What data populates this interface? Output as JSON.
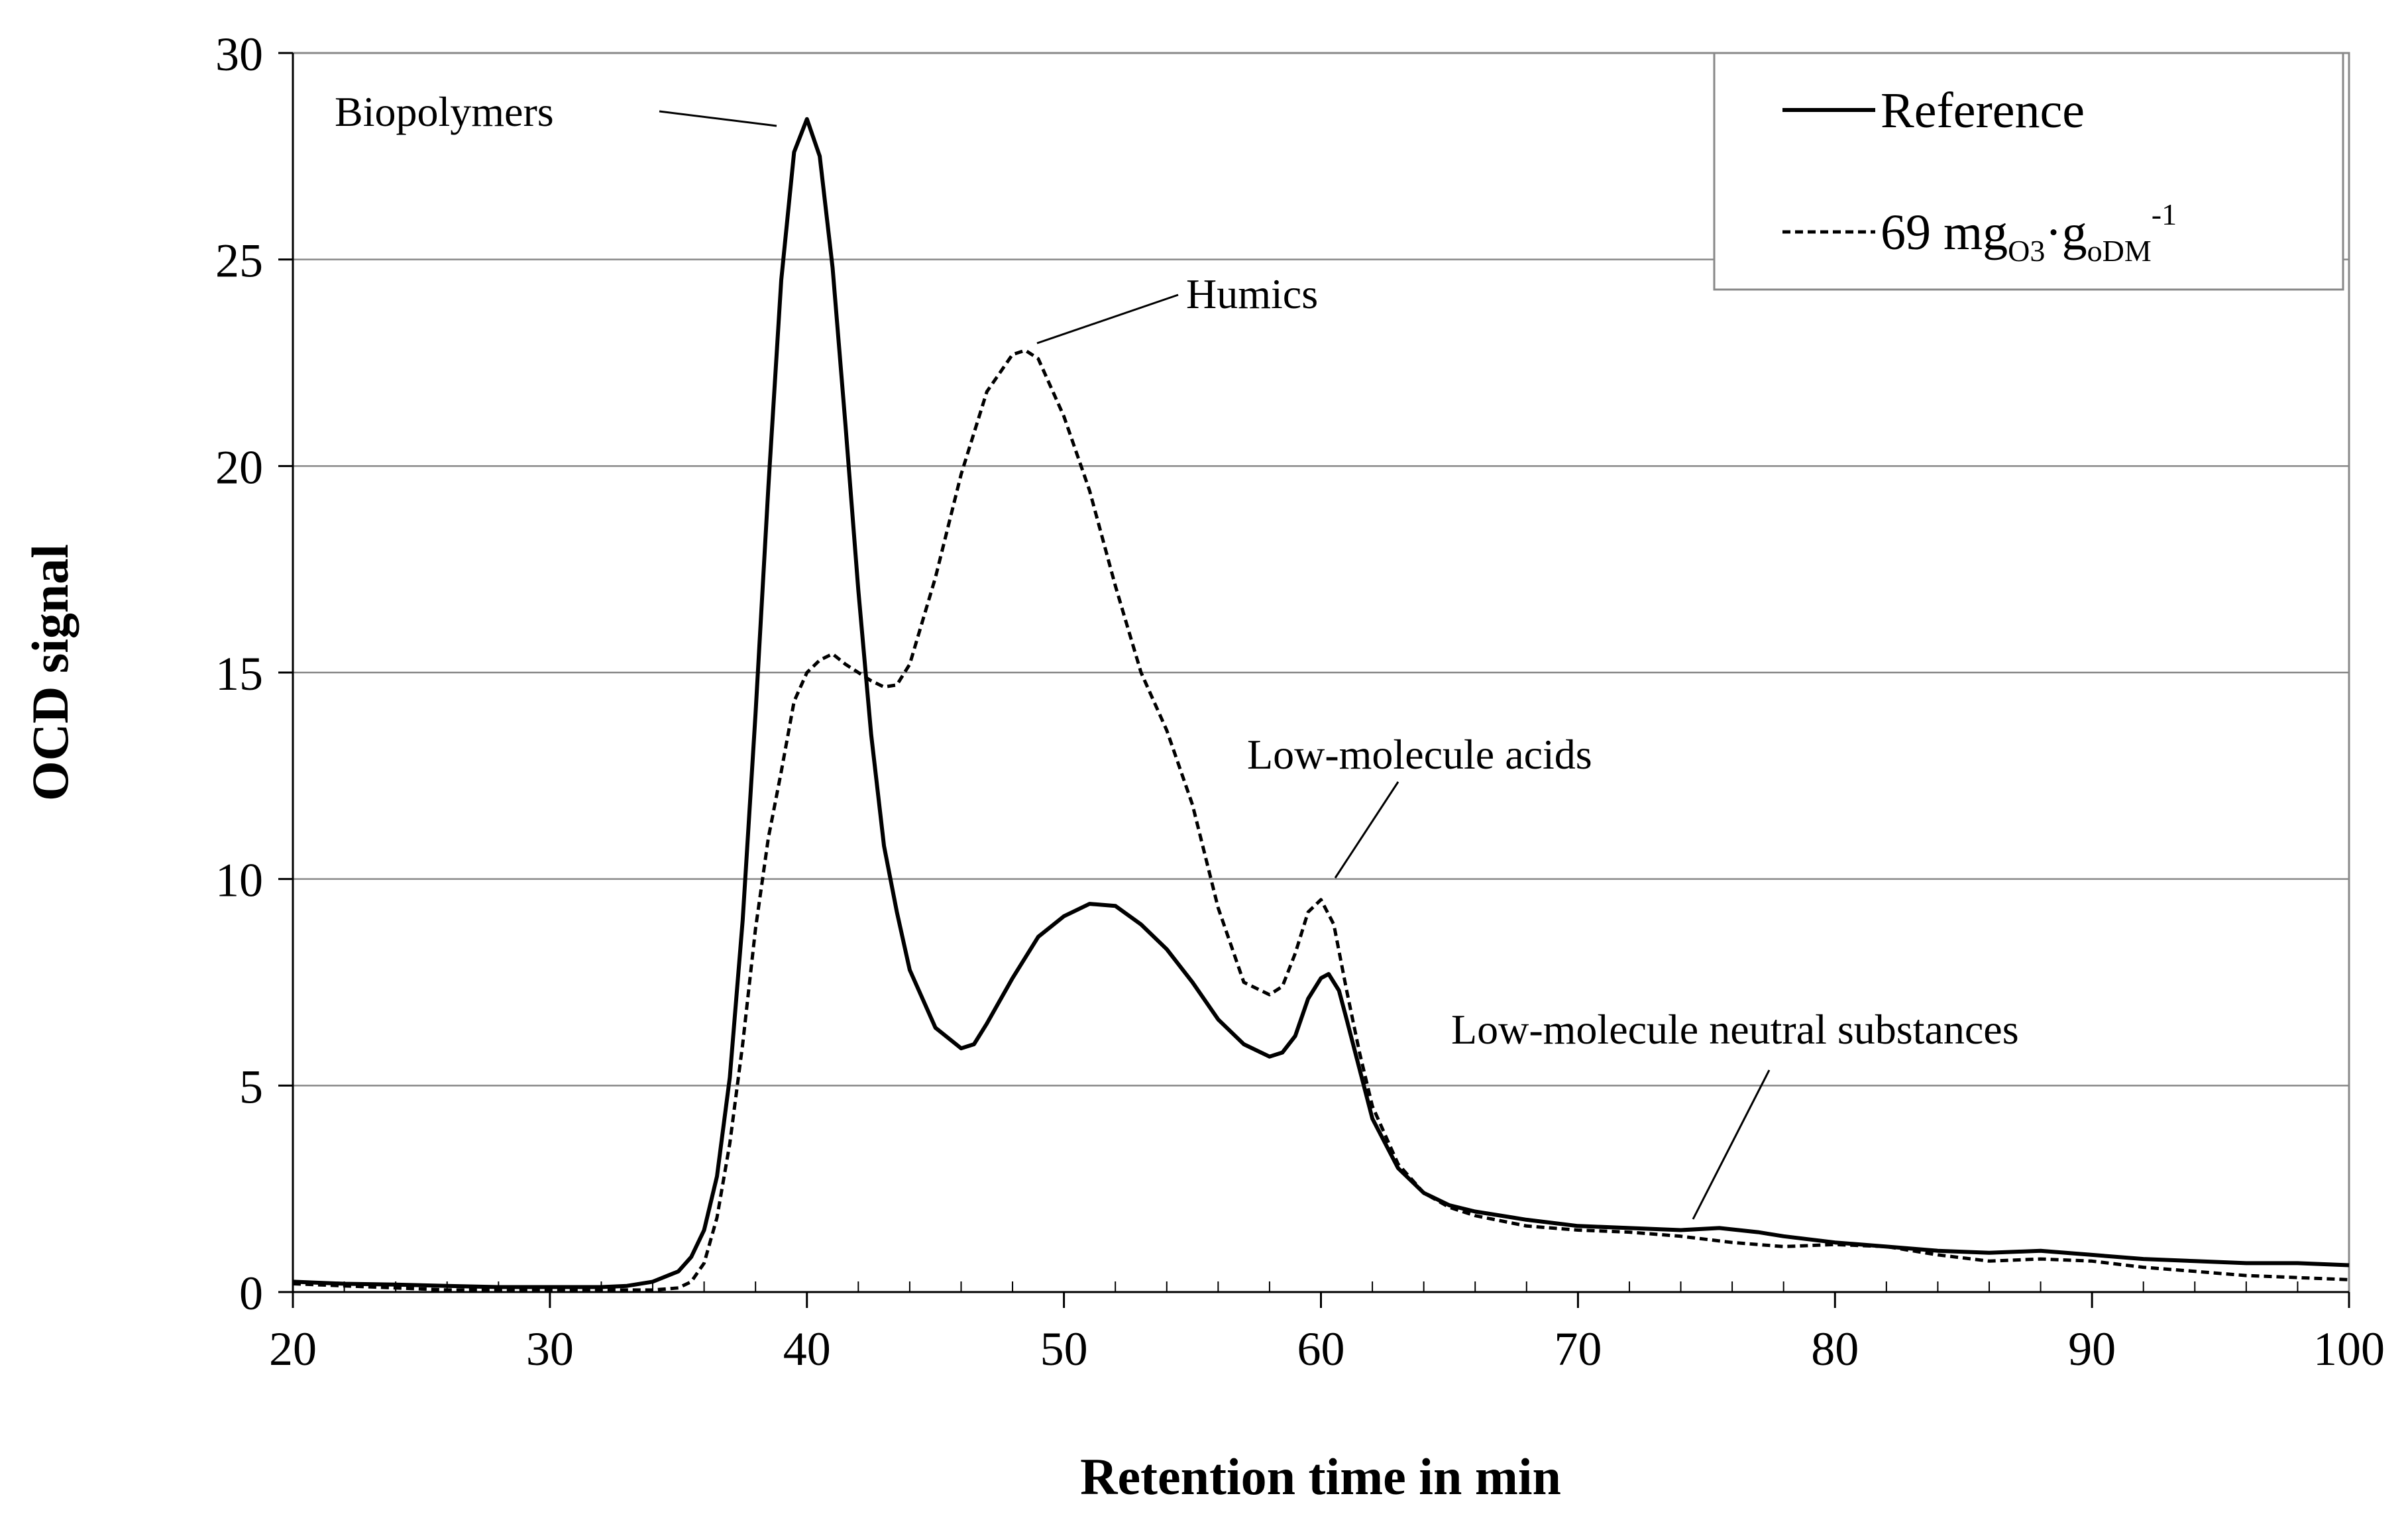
{
  "chart_data": {
    "type": "line",
    "title": "",
    "xlabel": "Retention time in min",
    "ylabel": "OCD signal",
    "xlim": [
      20,
      100
    ],
    "ylim": [
      0,
      30
    ],
    "xticks": [
      20,
      30,
      40,
      50,
      60,
      70,
      80,
      90,
      100
    ],
    "yticks": [
      0,
      5,
      10,
      15,
      20,
      25,
      30
    ],
    "grid": "horizontal",
    "legend_position": "top-right",
    "legend": {
      "reference": "Reference",
      "ozonated_main": "69 mg",
      "ozonated_sub1": "O3",
      "ozonated_dot": "·g",
      "ozonated_sub2": "oDM",
      "ozonated_sup": "-1"
    },
    "annotations": [
      {
        "text": "Biopolymers",
        "target": [
          39.8,
          28.4
        ]
      },
      {
        "text": "Humics",
        "target": [
          48.5,
          22.8
        ]
      },
      {
        "text": "Low-molecule acids",
        "target": [
          60.2,
          9.5
        ]
      },
      {
        "text": "Low-molecule neutral substances",
        "target": [
          74.5,
          1.7
        ]
      }
    ],
    "series": [
      {
        "name": "Reference",
        "style": "solid",
        "x": [
          20,
          22,
          24,
          26,
          28,
          30,
          32,
          33,
          34,
          35,
          35.5,
          36,
          36.5,
          37,
          37.5,
          38,
          38.5,
          39,
          39.5,
          40,
          40.5,
          41,
          41.5,
          42,
          42.5,
          43,
          43.5,
          44,
          45,
          46,
          46.5,
          47,
          48,
          49,
          50,
          51,
          52,
          53,
          54,
          55,
          56,
          57,
          58,
          58.5,
          59,
          59.5,
          60,
          60.3,
          60.7,
          61,
          61.5,
          62,
          63,
          64,
          65,
          66,
          68,
          70,
          72,
          74,
          75.5,
          77,
          78,
          80,
          82,
          84,
          86,
          88,
          90,
          92,
          94,
          96,
          98,
          100
        ],
        "y": [
          0.25,
          0.2,
          0.18,
          0.15,
          0.12,
          0.12,
          0.12,
          0.15,
          0.25,
          0.5,
          0.85,
          1.5,
          2.8,
          5.2,
          9.0,
          14.0,
          19.5,
          24.5,
          27.6,
          28.4,
          27.5,
          24.8,
          21.0,
          17.0,
          13.5,
          10.8,
          9.2,
          7.8,
          6.4,
          5.9,
          6.0,
          6.5,
          7.6,
          8.6,
          9.1,
          9.4,
          9.35,
          8.9,
          8.3,
          7.5,
          6.6,
          6.0,
          5.7,
          5.8,
          6.2,
          7.1,
          7.6,
          7.7,
          7.3,
          6.6,
          5.4,
          4.2,
          3.0,
          2.4,
          2.1,
          1.95,
          1.75,
          1.6,
          1.55,
          1.5,
          1.55,
          1.45,
          1.35,
          1.2,
          1.1,
          1.0,
          0.95,
          1.0,
          0.9,
          0.8,
          0.75,
          0.7,
          0.7,
          0.65
        ]
      },
      {
        "name": "69 mgO3·goDM-1",
        "style": "dashed",
        "x": [
          20,
          22,
          24,
          26,
          28,
          30,
          32,
          33,
          34,
          35,
          35.5,
          36,
          36.5,
          37,
          37.5,
          38,
          38.5,
          39,
          39.5,
          40,
          40.5,
          41,
          41.5,
          42,
          42.5,
          43,
          43.5,
          44,
          45,
          46,
          47,
          48,
          48.5,
          49,
          50,
          51,
          52,
          53,
          54,
          55,
          56,
          57,
          58,
          58.5,
          59,
          59.5,
          60,
          60.5,
          61,
          61.5,
          62,
          63,
          64,
          65,
          66,
          68,
          70,
          72,
          74,
          76,
          78,
          80,
          82,
          84,
          86,
          88,
          90,
          92,
          94,
          96,
          98,
          100
        ],
        "y": [
          0.2,
          0.15,
          0.1,
          0.05,
          0.05,
          0.05,
          0.05,
          0.05,
          0.05,
          0.1,
          0.25,
          0.7,
          1.8,
          3.6,
          6.0,
          8.8,
          11.0,
          12.6,
          14.3,
          15.0,
          15.3,
          15.45,
          15.2,
          15.0,
          14.8,
          14.65,
          14.7,
          15.2,
          17.3,
          19.8,
          21.8,
          22.7,
          22.8,
          22.6,
          21.2,
          19.4,
          17.1,
          15.0,
          13.6,
          11.8,
          9.3,
          7.5,
          7.2,
          7.4,
          8.2,
          9.2,
          9.5,
          8.9,
          7.3,
          5.8,
          4.5,
          3.1,
          2.4,
          2.05,
          1.85,
          1.6,
          1.5,
          1.45,
          1.35,
          1.2,
          1.1,
          1.15,
          1.1,
          0.9,
          0.75,
          0.8,
          0.75,
          0.6,
          0.5,
          0.4,
          0.35,
          0.3
        ]
      }
    ]
  }
}
